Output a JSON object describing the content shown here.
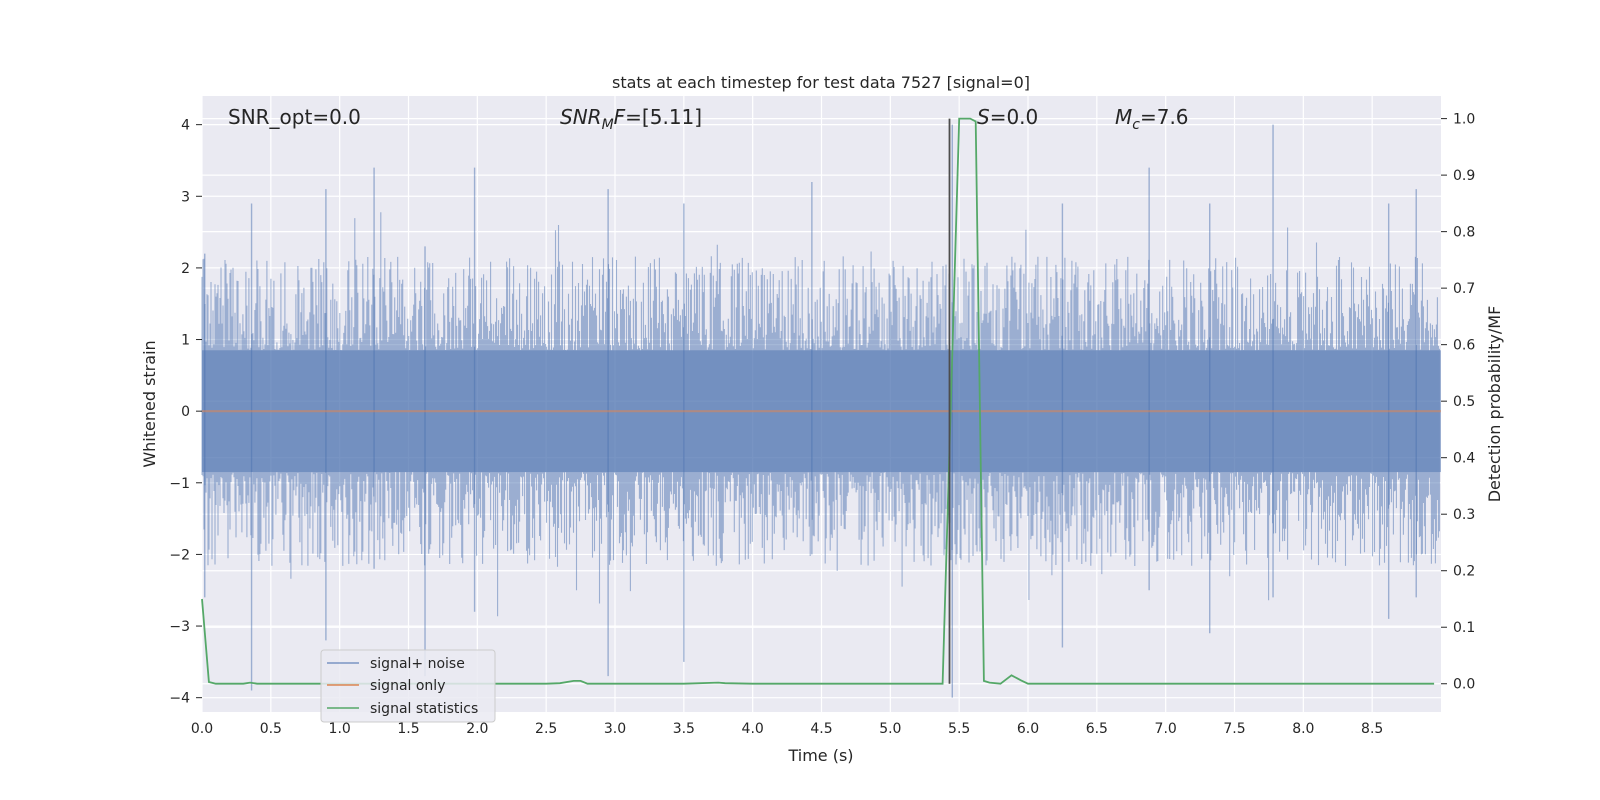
{
  "chart_data": {
    "type": "line",
    "title": "stats at each timestep for test data 7527 [signal=0]",
    "xlabel": "Time (s)",
    "ylabel": "Whitened strain",
    "ylabel_right": "Detection probability/MF",
    "xlim": [
      0.0,
      9.0
    ],
    "ylim": [
      -4.2,
      4.4
    ],
    "ylim_right": [
      -0.05,
      1.04
    ],
    "x_ticks": [
      "0.0",
      "0.5",
      "1.0",
      "1.5",
      "2.0",
      "2.5",
      "3.0",
      "3.5",
      "4.0",
      "4.5",
      "5.0",
      "5.5",
      "6.0",
      "6.5",
      "7.0",
      "7.5",
      "8.0",
      "8.5"
    ],
    "y_ticks": [
      "−4",
      "−3",
      "−2",
      "−1",
      "0",
      "1",
      "2",
      "3",
      "4"
    ],
    "y_ticks_right": [
      "0.0",
      "0.1",
      "0.2",
      "0.3",
      "0.4",
      "0.5",
      "0.6",
      "0.7",
      "0.8",
      "0.9",
      "1.0"
    ],
    "grid": true,
    "background": "#eaeaf2",
    "legend_position": "lower-left",
    "annotations": {
      "snr_opt": "SNR_opt=0.0",
      "snr_mf_main": "SNR",
      "snr_mf_sub": "M",
      "snr_mf_tail": "F",
      "snr_mf_value": "=[5.11]",
      "s_label": "S",
      "s_value": "=0.0",
      "mc_main": "M",
      "mc_sub": "c",
      "mc_value": "=7.6"
    },
    "series": [
      {
        "name": "signal+ noise",
        "axis": "left",
        "color": "#4c72b0",
        "opacity": 0.5,
        "description_only": false,
        "peaks": [
          [
            0.02,
            2.2,
            -2.6
          ],
          [
            0.36,
            2.9,
            -3.9
          ],
          [
            0.9,
            3.1,
            -3.2
          ],
          [
            1.25,
            3.4,
            -2.2
          ],
          [
            1.62,
            2.3,
            -3.7
          ],
          [
            1.98,
            3.4,
            -2.8
          ],
          [
            2.95,
            3.1,
            -3.7
          ],
          [
            3.5,
            2.9,
            -3.5
          ],
          [
            4.43,
            3.2,
            -2.0
          ],
          [
            5.45,
            4.0,
            -4.0
          ],
          [
            6.25,
            2.9,
            -3.3
          ],
          [
            6.88,
            3.4,
            -2.5
          ],
          [
            7.32,
            2.9,
            -3.1
          ],
          [
            7.78,
            4.0,
            -2.6
          ],
          [
            8.62,
            2.9,
            -2.9
          ],
          [
            8.82,
            3.1,
            -2.6
          ]
        ],
        "envelope": {
          "upper_typical": 1.9,
          "lower_typical": -1.9,
          "core": 0.85
        }
      },
      {
        "name": "signal only",
        "axis": "left",
        "color": "#dd8452",
        "x": [
          0.0,
          9.0
        ],
        "y": [
          0.0,
          0.0
        ]
      },
      {
        "name": "signal statistics",
        "axis": "right",
        "color": "#55a868",
        "x": [
          0.0,
          0.05,
          0.1,
          0.2,
          0.3,
          0.35,
          0.4,
          0.5,
          1.0,
          1.5,
          2.0,
          2.5,
          2.6,
          2.7,
          2.75,
          2.8,
          3.0,
          3.5,
          3.75,
          3.8,
          4.0,
          4.5,
          5.0,
          5.38,
          5.5,
          5.58,
          5.62,
          5.68,
          5.72,
          5.8,
          5.88,
          5.95,
          6.0,
          6.5,
          7.0,
          7.5,
          8.0,
          8.5,
          8.95
        ],
        "y": [
          0.15,
          0.003,
          0.0,
          0.0,
          0.0,
          0.002,
          0.0,
          0.0,
          0.0,
          0.0,
          0.0,
          0.0,
          0.001,
          0.005,
          0.005,
          0.0,
          0.0,
          0.0,
          0.002,
          0.001,
          0.0,
          0.0,
          0.0,
          0.0,
          1.0,
          1.0,
          0.995,
          0.005,
          0.002,
          0.0,
          0.015,
          0.006,
          0.0,
          0.0,
          0.0,
          0.0,
          0.0,
          0.0,
          0.0
        ]
      },
      {
        "name": "",
        "axis": "right",
        "color": "#4d4d4d",
        "x": [
          5.43,
          5.43
        ],
        "y": [
          0.0,
          1.0
        ]
      }
    ]
  }
}
